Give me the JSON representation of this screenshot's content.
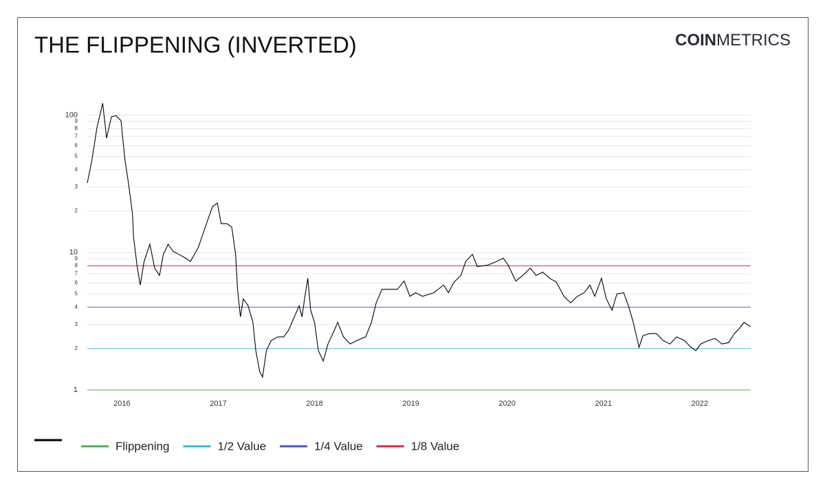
{
  "chart_data": {
    "type": "line",
    "title": "THE FLIPPENING (INVERTED)",
    "brand": {
      "bold": "COIN",
      "light": "METRICS"
    },
    "yscale": "log",
    "grid": true,
    "legend": "bottom-left",
    "xlim": [
      2015.64,
      2022.53
    ],
    "xticks": [
      2016,
      2017,
      2018,
      2019,
      2020,
      2021,
      2022
    ],
    "ylim": [
      1,
      125
    ],
    "yticks": [
      1,
      2,
      3,
      4,
      5,
      6,
      7,
      8,
      9,
      10,
      {
        "value": 20,
        "label": "2"
      },
      {
        "value": 30,
        "label": "3"
      },
      {
        "value": 40,
        "label": "4"
      },
      {
        "value": 50,
        "label": "5"
      },
      {
        "value": 60,
        "label": "6"
      },
      {
        "value": 70,
        "label": "7"
      },
      {
        "value": 80,
        "label": "8"
      },
      {
        "value": 90,
        "label": "9"
      },
      100
    ],
    "x": [
      2015.64,
      2015.69,
      2015.74,
      2015.8,
      2015.84,
      2015.89,
      2015.94,
      2015.99,
      2016.03,
      2016.07,
      2016.11,
      2016.12,
      2016.16,
      2016.19,
      2016.23,
      2016.29,
      2016.34,
      2016.39,
      2016.43,
      2016.48,
      2016.53,
      2016.59,
      2016.66,
      2016.71,
      2016.79,
      2016.84,
      2016.89,
      2016.94,
      2016.99,
      2017.03,
      2017.09,
      2017.14,
      2017.18,
      2017.2,
      2017.23,
      2017.26,
      2017.31,
      2017.36,
      2017.39,
      2017.43,
      2017.46,
      2017.5,
      2017.55,
      2017.62,
      2017.68,
      2017.73,
      2017.79,
      2017.84,
      2017.87,
      2017.9,
      2017.93,
      2017.96,
      2018.0,
      2018.04,
      2018.09,
      2018.14,
      2018.19,
      2018.24,
      2018.3,
      2018.37,
      2018.44,
      2018.53,
      2018.59,
      2018.64,
      2018.7,
      2018.76,
      2018.86,
      2018.93,
      2018.99,
      2019.05,
      2019.12,
      2019.24,
      2019.34,
      2019.39,
      2019.45,
      2019.52,
      2019.57,
      2019.64,
      2019.69,
      2019.8,
      2019.89,
      2019.96,
      2020.01,
      2020.09,
      2020.16,
      2020.24,
      2020.3,
      2020.37,
      2020.44,
      2020.51,
      2020.59,
      2020.66,
      2020.73,
      2020.8,
      2020.86,
      2020.91,
      2020.98,
      2021.03,
      2021.09,
      2021.14,
      2021.21,
      2021.26,
      2021.31,
      2021.37,
      2021.41,
      2021.48,
      2021.55,
      2021.62,
      2021.69,
      2021.76,
      2021.84,
      2021.91,
      2021.96,
      2022.01,
      2022.09,
      2022.16,
      2022.23,
      2022.3,
      2022.36,
      2022.41,
      2022.46,
      2022.53
    ],
    "series": [
      {
        "color": "#000000",
        "values": [
          32,
          48,
          81,
          122,
          68,
          97,
          99,
          91,
          48,
          31,
          19,
          13,
          7.7,
          5.8,
          8.6,
          11.5,
          7.7,
          6.8,
          9.7,
          11.5,
          10.2,
          9.7,
          9.1,
          8.6,
          10.8,
          13.6,
          17.2,
          21.6,
          22.9,
          16.2,
          16.2,
          15.3,
          9.7,
          5.4,
          3.4,
          4.6,
          4.1,
          3.1,
          1.93,
          1.36,
          1.24,
          1.93,
          2.29,
          2.43,
          2.43,
          2.72,
          3.4,
          4.1,
          3.4,
          4.8,
          6.5,
          3.8,
          3.1,
          1.93,
          1.62,
          2.16,
          2.57,
          3.1,
          2.43,
          2.16,
          2.29,
          2.43,
          3.1,
          4.3,
          5.4,
          5.4,
          5.4,
          6.2,
          4.8,
          5.1,
          4.8,
          5.1,
          5.8,
          5.1,
          6.1,
          6.8,
          8.6,
          9.7,
          7.9,
          8.1,
          8.6,
          9.1,
          8.1,
          6.2,
          6.8,
          7.7,
          6.8,
          7.2,
          6.5,
          6.1,
          4.8,
          4.3,
          4.8,
          5.1,
          5.8,
          4.8,
          6.5,
          4.6,
          3.8,
          5.0,
          5.1,
          4.1,
          3.1,
          2.04,
          2.48,
          2.57,
          2.57,
          2.29,
          2.16,
          2.43,
          2.29,
          2.04,
          1.93,
          2.16,
          2.29,
          2.37,
          2.16,
          2.21,
          2.57,
          2.79,
          3.1,
          2.88
        ]
      },
      {
        "name": "Flippening",
        "color": "#4caf50",
        "x": [
          2015.64,
          2022.53
        ],
        "values": [
          1,
          1
        ]
      },
      {
        "name": "1/2 Value",
        "color": "#2bbcd8",
        "x": [
          2015.64,
          2022.53
        ],
        "values": [
          2,
          2
        ]
      },
      {
        "name": "1/4 Value",
        "color": "#4655c4",
        "x": [
          2015.64,
          2022.53
        ],
        "values": [
          4,
          4
        ]
      },
      {
        "name": "1/8 Value",
        "color": "#e0234e",
        "x": [
          2015.64,
          2022.53
        ],
        "values": [
          8,
          8
        ]
      }
    ]
  }
}
